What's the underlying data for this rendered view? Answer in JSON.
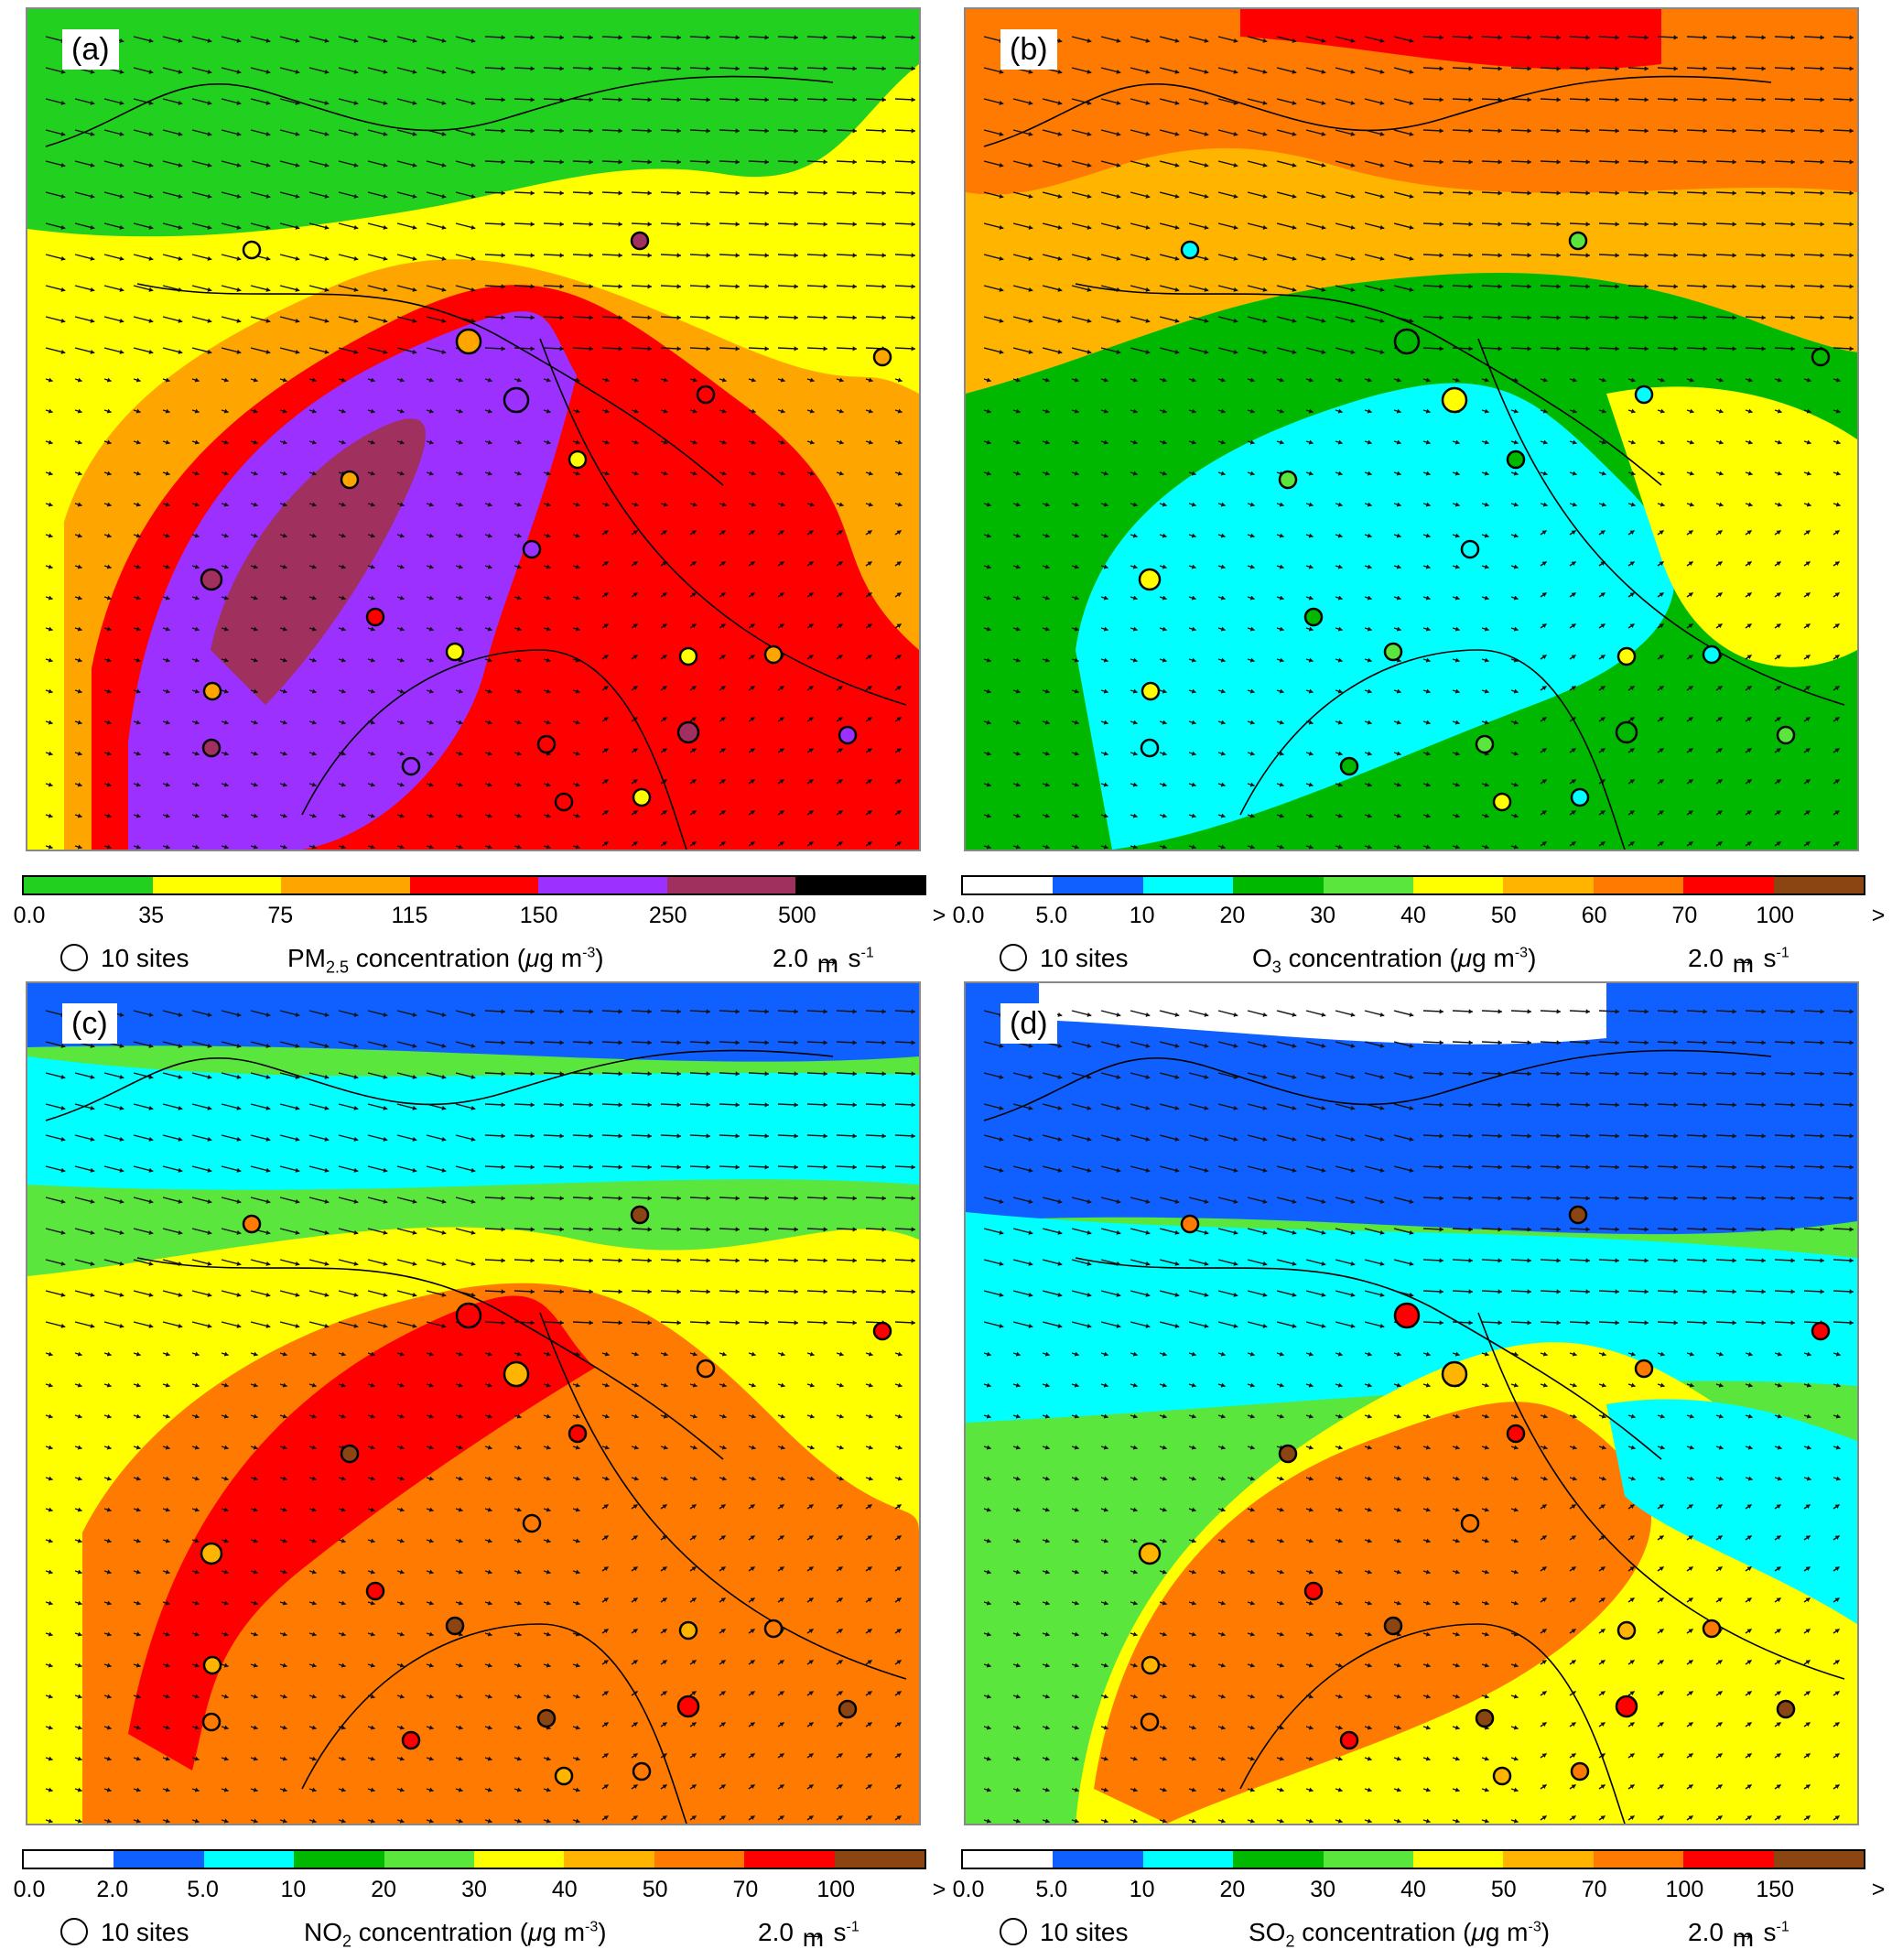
{
  "colors": {
    "pm25": [
      "#22d11f",
      "#ffff00",
      "#ffa500",
      "#ff0000",
      "#9b30ff",
      "#a0305e",
      "#000000"
    ],
    "o3": [
      "#ffffff",
      "#1060ff",
      "#00ffff",
      "#00b800",
      "#5ae63c",
      "#ffff00",
      "#ffb400",
      "#ff7a00",
      "#ff0000",
      "#8b4513"
    ],
    "no2": [
      "#ffffff",
      "#1060ff",
      "#00ffff",
      "#00b800",
      "#5ae63c",
      "#ffff00",
      "#ffb400",
      "#ff7a00",
      "#ff0000",
      "#8b4513"
    ],
    "so2": [
      "#ffffff",
      "#1060ff",
      "#00ffff",
      "#00b800",
      "#5ae63c",
      "#ffff00",
      "#ffb400",
      "#ff7a00",
      "#ff0000",
      "#8b4513"
    ]
  },
  "panels": [
    {
      "label": "(a)",
      "species": "pm25"
    },
    {
      "label": "(b)",
      "species": "o3"
    },
    {
      "label": "(c)",
      "species": "no2"
    },
    {
      "label": "(d)",
      "species": "so2"
    }
  ],
  "colorbars": {
    "pm25": {
      "ticks": [
        "0.0",
        "35",
        "75",
        "115",
        "150",
        "250",
        "500",
        ">"
      ],
      "title_main": "PM",
      "title_sub": "2.5",
      "title_rest": " concentration (",
      "mu": "μ",
      "unit": "g m",
      "exp": "-3"
    },
    "o3": {
      "ticks": [
        "0.0",
        "5.0",
        "10",
        "20",
        "30",
        "40",
        "50",
        "60",
        "70",
        "100",
        ">"
      ],
      "title_main": "O",
      "title_sub": "3",
      "title_rest": " concentration (",
      "mu": "μ",
      "unit": "g m",
      "exp": "-3"
    },
    "no2": {
      "ticks": [
        "0.0",
        "2.0",
        "5.0",
        "10",
        "20",
        "30",
        "40",
        "50",
        "70",
        "100",
        ">"
      ],
      "title_main": "NO",
      "title_sub": "2",
      "title_rest": " concentration (",
      "mu": "μ",
      "unit": "g m",
      "exp": "-3"
    },
    "so2": {
      "ticks": [
        "0.0",
        "5.0",
        "10",
        "20",
        "30",
        "40",
        "50",
        "70",
        "100",
        "150",
        ">"
      ],
      "title_main": "SO",
      "title_sub": "2",
      "title_rest": " concentration (",
      "mu": "μ",
      "unit": "g m",
      "exp": "-3"
    }
  },
  "legend": {
    "sites": "10 sites",
    "wind": "2.0",
    "wind_unit_m": "m",
    "wind_unit_s": "s",
    "wind_exp": "-1"
  }
}
